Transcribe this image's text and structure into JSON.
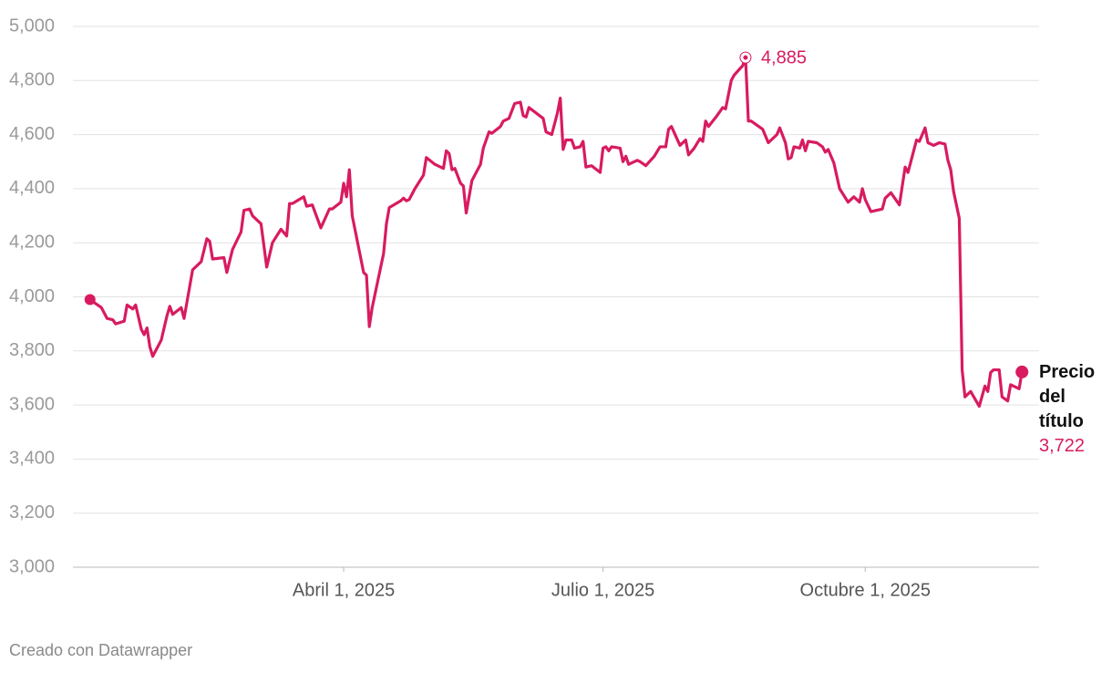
{
  "chart_data": {
    "type": "line",
    "x": [
      "2025-01-02",
      "2025-01-04",
      "2025-01-06",
      "2025-01-08",
      "2025-01-10",
      "2025-01-11",
      "2025-01-14",
      "2025-01-15",
      "2025-01-17",
      "2025-01-18",
      "2025-01-20",
      "2025-01-21",
      "2025-01-22",
      "2025-01-23",
      "2025-01-24",
      "2025-01-27",
      "2025-01-29",
      "2025-01-30",
      "2025-01-31",
      "2025-02-03",
      "2025-02-04",
      "2025-02-07",
      "2025-02-10",
      "2025-02-12",
      "2025-02-13",
      "2025-02-14",
      "2025-02-18",
      "2025-02-19",
      "2025-02-21",
      "2025-02-24",
      "2025-02-25",
      "2025-02-27",
      "2025-02-28",
      "2025-03-03",
      "2025-03-05",
      "2025-03-07",
      "2025-03-10",
      "2025-03-12",
      "2025-03-13",
      "2025-03-14",
      "2025-03-18",
      "2025-03-19",
      "2025-03-21",
      "2025-03-24",
      "2025-03-27",
      "2025-03-28",
      "2025-03-31",
      "2025-04-01",
      "2025-04-02",
      "2025-04-03",
      "2025-04-04",
      "2025-04-08",
      "2025-04-09",
      "2025-04-10",
      "2025-04-11",
      "2025-04-13",
      "2025-04-15",
      "2025-04-16",
      "2025-04-17",
      "2025-04-21",
      "2025-04-22",
      "2025-04-23",
      "2025-04-24",
      "2025-04-26",
      "2025-04-29",
      "2025-04-30",
      "2025-05-03",
      "2025-05-06",
      "2025-05-07",
      "2025-05-08",
      "2025-05-09",
      "2025-05-10",
      "2025-05-12",
      "2025-05-13",
      "2025-05-14",
      "2025-05-16",
      "2025-05-19",
      "2025-05-20",
      "2025-05-22",
      "2025-05-23",
      "2025-05-26",
      "2025-05-27",
      "2025-05-29",
      "2025-05-31",
      "2025-06-02",
      "2025-06-03",
      "2025-06-04",
      "2025-06-05",
      "2025-06-10",
      "2025-06-11",
      "2025-06-13",
      "2025-06-15",
      "2025-06-16",
      "2025-06-17",
      "2025-06-18",
      "2025-06-20",
      "2025-06-21",
      "2025-06-23",
      "2025-06-24",
      "2025-06-25",
      "2025-06-27",
      "2025-06-30",
      "2025-07-01",
      "2025-07-02",
      "2025-07-03",
      "2025-07-04",
      "2025-07-07",
      "2025-07-08",
      "2025-07-09",
      "2025-07-10",
      "2025-07-13",
      "2025-07-14",
      "2025-07-16",
      "2025-07-19",
      "2025-07-21",
      "2025-07-23",
      "2025-07-24",
      "2025-07-25",
      "2025-07-28",
      "2025-07-30",
      "2025-07-31",
      "2025-08-02",
      "2025-08-04",
      "2025-08-05",
      "2025-08-06",
      "2025-08-07",
      "2025-08-10",
      "2025-08-12",
      "2025-08-13",
      "2025-08-15",
      "2025-08-16",
      "2025-08-19",
      "2025-08-20",
      "2025-08-21",
      "2025-08-22",
      "2025-08-26",
      "2025-08-28",
      "2025-08-31",
      "2025-09-01",
      "2025-09-03",
      "2025-09-04",
      "2025-09-05",
      "2025-09-06",
      "2025-09-08",
      "2025-09-09",
      "2025-09-10",
      "2025-09-11",
      "2025-09-14",
      "2025-09-16",
      "2025-09-17",
      "2025-09-18",
      "2025-09-20",
      "2025-09-22",
      "2025-09-25",
      "2025-09-27",
      "2025-09-29",
      "2025-09-30",
      "2025-10-01",
      "2025-10-03",
      "2025-10-07",
      "2025-10-08",
      "2025-10-10",
      "2025-10-11",
      "2025-10-13",
      "2025-10-15",
      "2025-10-16",
      "2025-10-19",
      "2025-10-20",
      "2025-10-22",
      "2025-10-23",
      "2025-10-25",
      "2025-10-27",
      "2025-10-29",
      "2025-10-30",
      "2025-10-31",
      "2025-11-01",
      "2025-11-03",
      "2025-11-04",
      "2025-11-05",
      "2025-11-07",
      "2025-11-10",
      "2025-11-12",
      "2025-11-13",
      "2025-11-14",
      "2025-11-15",
      "2025-11-17",
      "2025-11-18",
      "2025-11-20",
      "2025-11-21",
      "2025-11-24",
      "2025-11-25"
    ],
    "series": [
      {
        "name": "Precio del título",
        "color": "#d81b60",
        "values": [
          3990,
          3975,
          3960,
          3920,
          3915,
          3900,
          3910,
          3970,
          3955,
          3970,
          3880,
          3860,
          3885,
          3815,
          3780,
          3840,
          3930,
          3965,
          3935,
          3960,
          3920,
          4100,
          4130,
          4215,
          4205,
          4140,
          4145,
          4090,
          4175,
          4240,
          4320,
          4325,
          4300,
          4270,
          4110,
          4200,
          4250,
          4225,
          4345,
          4345,
          4370,
          4335,
          4340,
          4255,
          4325,
          4325,
          4350,
          4420,
          4370,
          4470,
          4300,
          4090,
          4080,
          3890,
          3960,
          4060,
          4160,
          4270,
          4330,
          4355,
          4365,
          4355,
          4360,
          4400,
          4450,
          4515,
          4490,
          4475,
          4540,
          4530,
          4470,
          4475,
          4420,
          4410,
          4310,
          4430,
          4490,
          4550,
          4610,
          4605,
          4630,
          4650,
          4660,
          4715,
          4720,
          4670,
          4665,
          4700,
          4660,
          4610,
          4600,
          4680,
          4735,
          4545,
          4580,
          4580,
          4550,
          4555,
          4575,
          4480,
          4485,
          4460,
          4550,
          4555,
          4540,
          4555,
          4550,
          4500,
          4520,
          4490,
          4505,
          4500,
          4485,
          4520,
          4555,
          4555,
          4620,
          4630,
          4560,
          4580,
          4525,
          4550,
          4585,
          4575,
          4650,
          4630,
          4670,
          4700,
          4695,
          4800,
          4820,
          4855,
          4885,
          4650,
          4650,
          4620,
          4570,
          4600,
          4625,
          4570,
          4510,
          4515,
          4555,
          4550,
          4580,
          4540,
          4575,
          4570,
          4555,
          4535,
          4545,
          4495,
          4400,
          4350,
          4370,
          4350,
          4400,
          4360,
          4315,
          4325,
          4365,
          4385,
          4370,
          4340,
          4480,
          4460,
          4580,
          4575,
          4625,
          4570,
          4560,
          4570,
          4565,
          4505,
          4470,
          4390,
          4290,
          3730,
          3630,
          3650,
          3595,
          3670,
          3650,
          3720,
          3730,
          3730,
          3630,
          3615,
          3675,
          3660,
          3722
        ],
        "value_labels": [
          null,
          null,
          null,
          null,
          null,
          null,
          null,
          null,
          null,
          null,
          null,
          null,
          null,
          null,
          null,
          null,
          null,
          null,
          null,
          null,
          null,
          null,
          null,
          null,
          null,
          null,
          null,
          null,
          null,
          null,
          null,
          null,
          null,
          null,
          null,
          null,
          null,
          null,
          null,
          null,
          null,
          null,
          null,
          null,
          null,
          null,
          null,
          null,
          null,
          null,
          null,
          null,
          null,
          null,
          null,
          null,
          null,
          null,
          null,
          null,
          null,
          null,
          null,
          null,
          null,
          null,
          null,
          null,
          null,
          null,
          null,
          null,
          null,
          null,
          null,
          null,
          null,
          null,
          null,
          null,
          null,
          null,
          null,
          null,
          null,
          null,
          null,
          null,
          null,
          null,
          null,
          null,
          null,
          null,
          null,
          null,
          null,
          null,
          null,
          null,
          null,
          null,
          null,
          null,
          null,
          null,
          null,
          null,
          null,
          null,
          null,
          null,
          null,
          null,
          null,
          null,
          null,
          null,
          null,
          null,
          null,
          null,
          null,
          null,
          null,
          null,
          null,
          null,
          null,
          null,
          null,
          null,
          "4,885",
          null,
          null,
          null,
          null,
          null,
          null,
          null,
          null,
          null,
          null,
          null,
          null,
          null,
          null,
          null,
          null,
          null,
          null,
          null,
          null,
          null,
          null,
          null,
          null,
          null,
          null,
          null,
          null,
          null,
          null,
          null,
          null,
          null,
          null,
          null,
          null,
          null,
          null,
          null,
          null,
          null,
          null,
          null,
          null,
          null,
          null,
          null,
          null,
          null,
          null,
          null,
          null,
          null,
          null,
          null,
          null,
          null,
          "3,722"
        ]
      }
    ],
    "xlim": [
      "2024-12-27",
      "2025-12-01"
    ],
    "xticks": [
      {
        "value": "2025-04-01",
        "label": "Abril 1, 2025"
      },
      {
        "value": "2025-07-01",
        "label": "Julio 1, 2025"
      },
      {
        "value": "2025-10-01",
        "label": "Octubre 1, 2025"
      }
    ],
    "ylim": [
      3000,
      5000
    ],
    "yticks": [
      {
        "value": 3000,
        "label": "3,000"
      },
      {
        "value": 3200,
        "label": "3,200"
      },
      {
        "value": 3400,
        "label": "3,400"
      },
      {
        "value": 3600,
        "label": "3,600"
      },
      {
        "value": 3800,
        "label": "3,800"
      },
      {
        "value": 4000,
        "label": "4,000"
      },
      {
        "value": 4200,
        "label": "4,200"
      },
      {
        "value": 4400,
        "label": "4,400"
      },
      {
        "value": 4600,
        "label": "4,600"
      },
      {
        "value": 4800,
        "label": "4,800"
      },
      {
        "value": 5000,
        "label": "5,000"
      }
    ],
    "grid": true,
    "credit": "Creado con Datawrapper"
  }
}
